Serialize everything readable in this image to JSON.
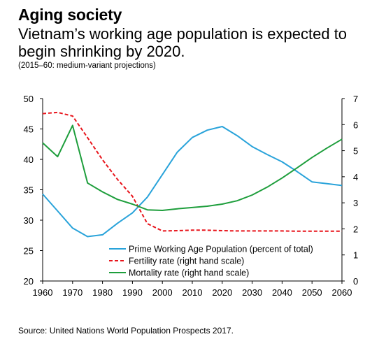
{
  "header": {
    "title": "Aging society",
    "subtitle": "Vietnam’s working age population is expected to begin shrinking by 2020.",
    "note": "(2015–60: medium-variant projections)"
  },
  "footer": {
    "source": "Source: United Nations World Population Prospects 2017."
  },
  "chart_data": {
    "type": "line",
    "x": [
      1960,
      1965,
      1970,
      1975,
      1980,
      1985,
      1990,
      1995,
      2000,
      2005,
      2010,
      2015,
      2020,
      2025,
      2030,
      2035,
      2040,
      2045,
      2050,
      2055,
      2060
    ],
    "x_ticks": [
      1960,
      1970,
      1980,
      1990,
      2000,
      2010,
      2020,
      2030,
      2040,
      2050,
      2060
    ],
    "y_left": {
      "ylim": [
        20,
        50
      ],
      "ticks": [
        20,
        25,
        30,
        35,
        40,
        45,
        50
      ]
    },
    "y_right": {
      "ylim": [
        0,
        7
      ],
      "ticks": [
        0,
        1,
        2,
        3,
        4,
        5,
        6,
        7
      ]
    },
    "grid": false,
    "legend_position": "bottom-right",
    "series": [
      {
        "name": "Prime Working Age Population (percent of total)",
        "axis": "left",
        "color": "#29A3DA",
        "style": "solid",
        "values": [
          34.3,
          31.5,
          28.7,
          27.3,
          27.6,
          29.5,
          31.2,
          33.8,
          37.5,
          41.2,
          43.6,
          44.8,
          45.4,
          43.9,
          42.1,
          40.8,
          39.6,
          38.0,
          36.3,
          36.0,
          35.7
        ]
      },
      {
        "name": "Fertility rate (right hand scale)",
        "axis": "right",
        "color": "#E8141B",
        "style": "dashed",
        "values": [
          6.42,
          6.47,
          6.33,
          5.5,
          4.65,
          3.9,
          3.25,
          2.2,
          1.92,
          1.93,
          1.95,
          1.95,
          1.93,
          1.92,
          1.92,
          1.92,
          1.92,
          1.91,
          1.91,
          1.91,
          1.91
        ]
      },
      {
        "name": "Mortality rate (right hand scale)",
        "axis": "right",
        "color": "#1E9E3C",
        "style": "solid",
        "values": [
          5.3,
          4.77,
          5.97,
          3.76,
          3.42,
          3.13,
          2.95,
          2.73,
          2.71,
          2.77,
          2.82,
          2.87,
          2.95,
          3.08,
          3.3,
          3.6,
          3.95,
          4.34,
          4.74,
          5.1,
          5.44
        ]
      }
    ]
  }
}
